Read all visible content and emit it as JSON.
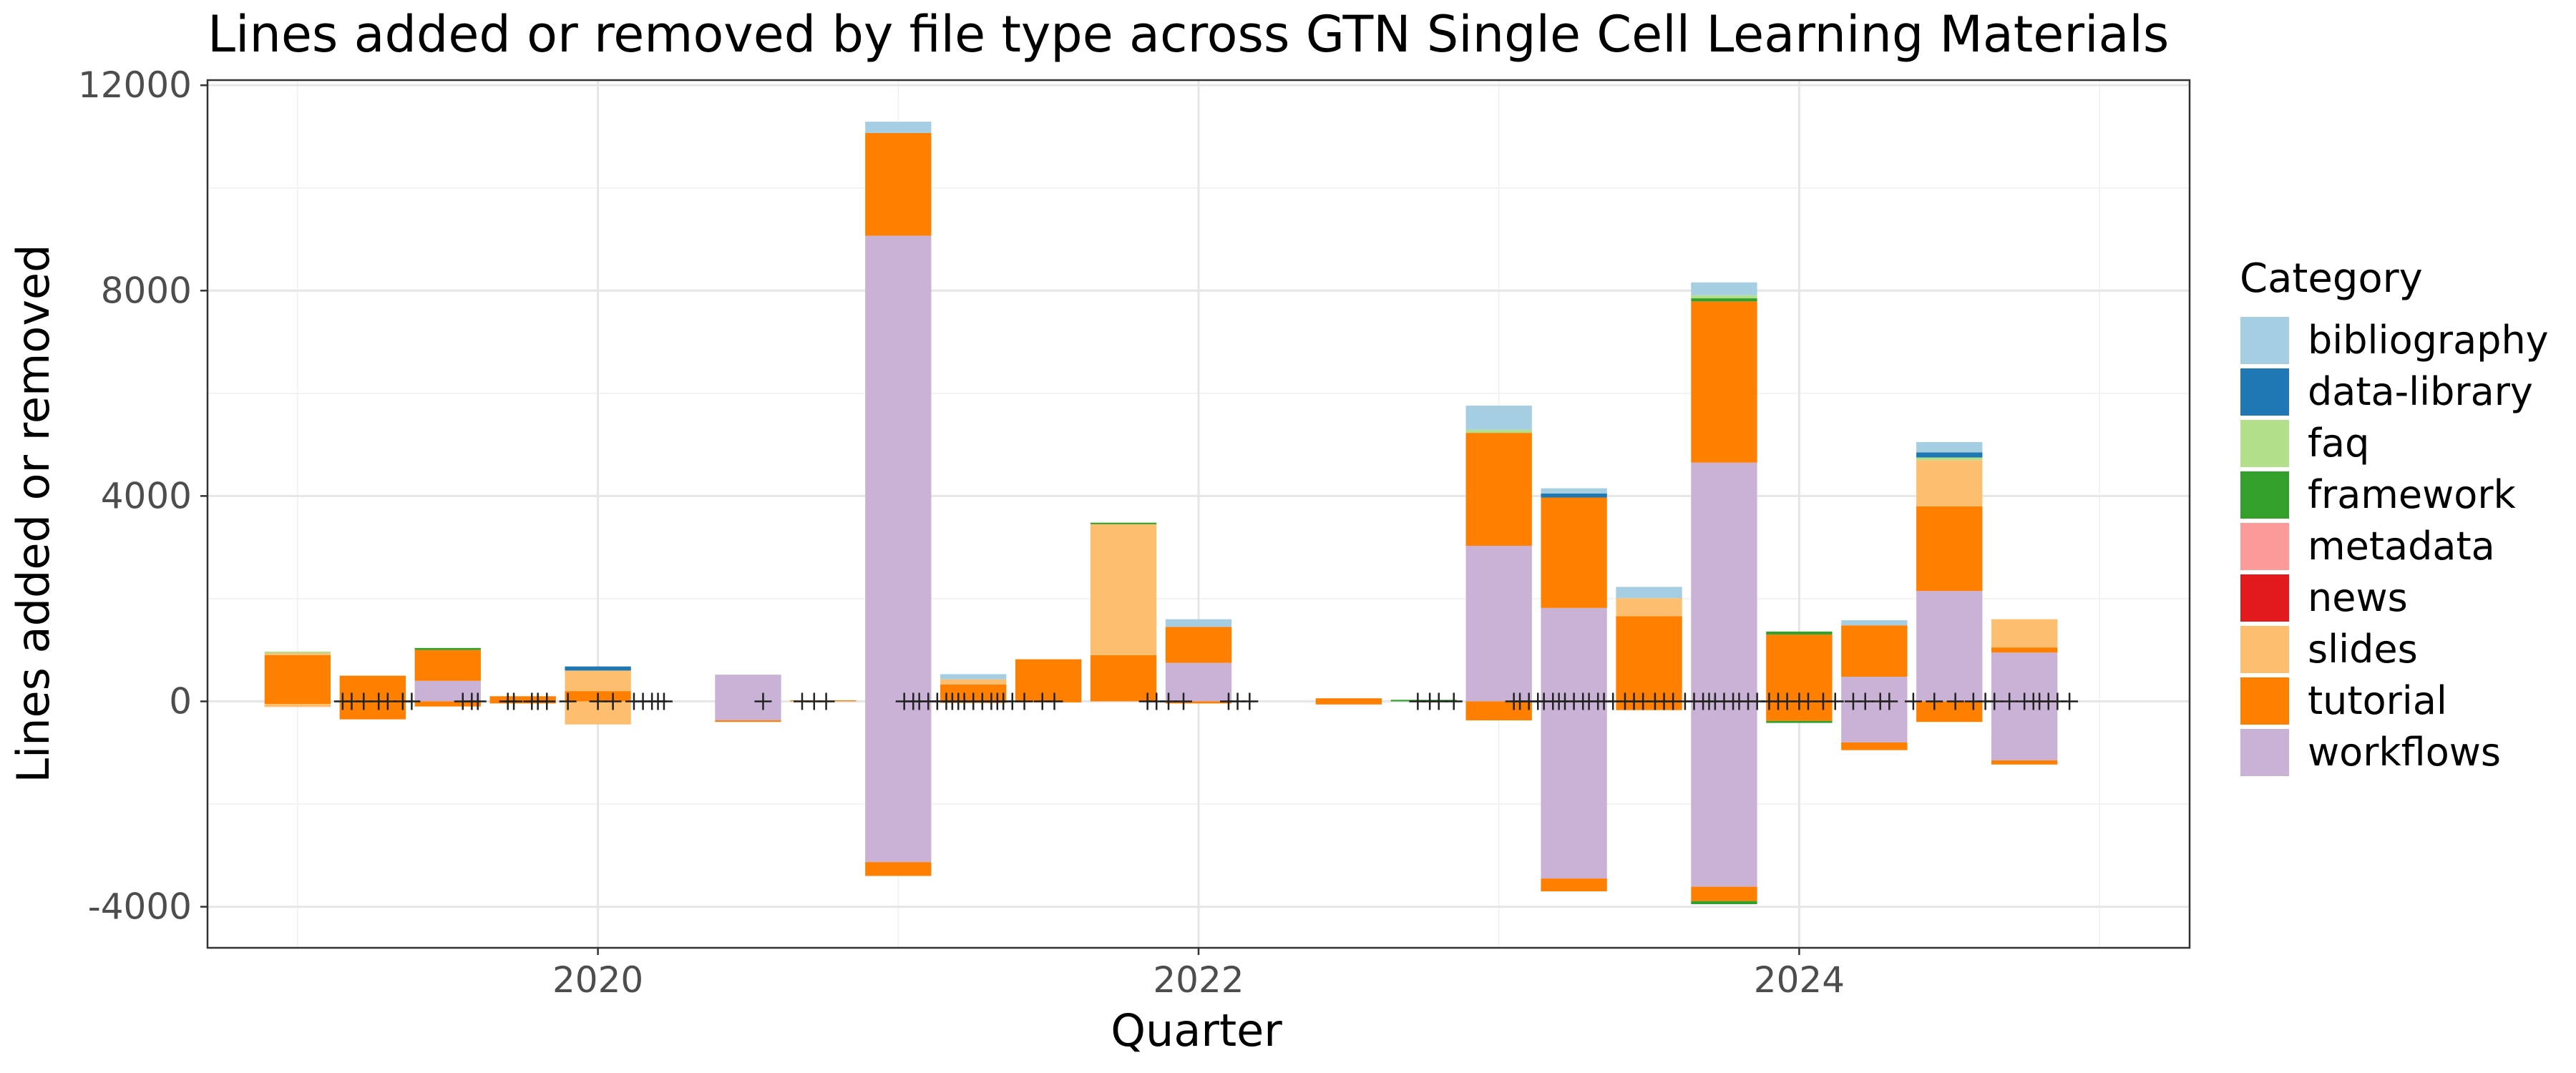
{
  "chart_data": {
    "type": "bar",
    "title": "Lines added or removed by file type across GTN Single Cell Learning Materials",
    "xlabel": "Quarter",
    "ylabel": "Lines added or removed",
    "xlim": [
      2018.7,
      2025.3
    ],
    "ylim": [
      -4800,
      12100
    ],
    "x_ticks": [
      2020,
      2022,
      2024
    ],
    "y_ticks": [
      -4000,
      0,
      4000,
      8000,
      12000
    ],
    "grid": true,
    "legend_position": "right",
    "legend_title": "Category",
    "bar_width_years": 0.22,
    "categories_order": [
      "bibliography",
      "data-library",
      "faq",
      "framework",
      "metadata",
      "news",
      "slides",
      "tutorial",
      "workflows"
    ],
    "colors": {
      "bibliography": "#A6CEE3",
      "data-library": "#1F78B4",
      "faq": "#B2DF8A",
      "framework": "#33A02C",
      "metadata": "#FB9A99",
      "news": "#E31A1C",
      "slides": "#FDBF6F",
      "tutorial": "#FF7F00",
      "workflows": "#CAB2D6"
    },
    "quarters": [
      {
        "x": 2019.0,
        "pos": {
          "faq": 30,
          "slides": 40,
          "tutorial": 900
        },
        "neg": {
          "slides": -60,
          "tutorial": -50
        }
      },
      {
        "x": 2019.25,
        "pos": {
          "tutorial": 500
        },
        "neg": {
          "tutorial": -350
        }
      },
      {
        "x": 2019.5,
        "pos": {
          "framework": 40,
          "tutorial": 600,
          "workflows": 400
        },
        "neg": {
          "tutorial": -100
        }
      },
      {
        "x": 2019.75,
        "pos": {
          "tutorial": 100
        },
        "neg": {
          "tutorial": -40
        }
      },
      {
        "x": 2020.0,
        "pos": {
          "data-library": 80,
          "slides": 400,
          "tutorial": 200
        },
        "neg": {
          "slides": -450
        }
      },
      {
        "x": 2020.5,
        "pos": {
          "workflows": 520
        },
        "neg": {
          "tutorial": -30,
          "workflows": -370
        }
      },
      {
        "x": 2020.75,
        "pos": {
          "tutorial": 20
        },
        "neg": {}
      },
      {
        "x": 2021.0,
        "pos": {
          "bibliography": 220,
          "tutorial": 2000,
          "workflows": 9070
        },
        "neg": {
          "tutorial": -270,
          "workflows": -3130
        }
      },
      {
        "x": 2021.25,
        "pos": {
          "bibliography": 100,
          "slides": 100,
          "tutorial": 330
        },
        "neg": {
          "tutorial": -30
        }
      },
      {
        "x": 2021.5,
        "pos": {
          "tutorial": 820
        },
        "neg": {
          "tutorial": -20
        }
      },
      {
        "x": 2021.75,
        "pos": {
          "framework": 30,
          "slides": 2550,
          "tutorial": 900
        },
        "neg": {}
      },
      {
        "x": 2022.0,
        "pos": {
          "bibliography": 150,
          "tutorial": 700,
          "workflows": 750
        },
        "neg": {
          "tutorial": -40
        }
      },
      {
        "x": 2022.5,
        "pos": {
          "tutorial": 60
        },
        "neg": {
          "tutorial": -60
        }
      },
      {
        "x": 2022.75,
        "pos": {
          "framework": 30
        },
        "neg": {}
      },
      {
        "x": 2023.0,
        "pos": {
          "bibliography": 470,
          "faq": 60,
          "tutorial": 2200,
          "workflows": 3030
        },
        "neg": {
          "tutorial": -370
        }
      },
      {
        "x": 2023.25,
        "pos": {
          "bibliography": 100,
          "data-library": 80,
          "tutorial": 2150,
          "workflows": 1820
        },
        "neg": {
          "tutorial": -250,
          "workflows": -3450
        }
      },
      {
        "x": 2023.5,
        "pos": {
          "bibliography": 220,
          "slides": 350,
          "tutorial": 1660
        },
        "neg": {
          "tutorial": -170
        }
      },
      {
        "x": 2023.75,
        "pos": {
          "bibliography": 250,
          "faq": 60,
          "framework": 60,
          "tutorial": 3140,
          "workflows": 4650
        },
        "neg": {
          "framework": -60,
          "tutorial": -280,
          "workflows": -3610
        }
      },
      {
        "x": 2024.0,
        "pos": {
          "framework": 60,
          "tutorial": 1300
        },
        "neg": {
          "framework": -40,
          "tutorial": -380
        }
      },
      {
        "x": 2024.25,
        "pos": {
          "bibliography": 100,
          "tutorial": 1000,
          "workflows": 480
        },
        "neg": {
          "tutorial": -150,
          "workflows": -800
        }
      },
      {
        "x": 2024.5,
        "pos": {
          "bibliography": 200,
          "data-library": 100,
          "faq": 50,
          "slides": 900,
          "tutorial": 1650,
          "workflows": 2150
        },
        "neg": {
          "tutorial": -400
        }
      },
      {
        "x": 2024.75,
        "pos": {
          "slides": 550,
          "tutorial": 100,
          "workflows": 950
        },
        "neg": {
          "tutorial": -80,
          "workflows": -1150
        }
      }
    ],
    "plus_markers_x": [
      2019.15,
      2019.18,
      2019.22,
      2019.27,
      2019.3,
      2019.35,
      2019.38,
      2019.55,
      2019.58,
      2019.6,
      2019.7,
      2019.72,
      2019.78,
      2019.8,
      2019.83,
      2019.9,
      2020.0,
      2020.05,
      2020.12,
      2020.15,
      2020.18,
      2020.2,
      2020.22,
      2020.55,
      2020.68,
      2020.72,
      2020.76,
      2021.02,
      2021.05,
      2021.07,
      2021.1,
      2021.13,
      2021.16,
      2021.18,
      2021.2,
      2021.22,
      2021.25,
      2021.28,
      2021.31,
      2021.33,
      2021.35,
      2021.38,
      2021.42,
      2021.48,
      2021.52,
      2021.83,
      2021.86,
      2021.9,
      2021.95,
      2022.1,
      2022.13,
      2022.17,
      2022.73,
      2022.77,
      2022.8,
      2022.85,
      2023.05,
      2023.07,
      2023.1,
      2023.13,
      2023.15,
      2023.18,
      2023.2,
      2023.22,
      2023.25,
      2023.28,
      2023.3,
      2023.33,
      2023.35,
      2023.38,
      2023.42,
      2023.45,
      2023.48,
      2023.52,
      2023.55,
      2023.58,
      2023.62,
      2023.65,
      2023.68,
      2023.7,
      2023.72,
      2023.75,
      2023.78,
      2023.8,
      2023.83,
      2023.86,
      2023.9,
      2023.93,
      2023.96,
      2024.0,
      2024.03,
      2024.08,
      2024.12,
      2024.18,
      2024.22,
      2024.27,
      2024.3,
      2024.38,
      2024.45,
      2024.52,
      2024.58,
      2024.62,
      2024.65,
      2024.7,
      2024.75,
      2024.78,
      2024.8,
      2024.83,
      2024.86,
      2024.9
    ]
  }
}
